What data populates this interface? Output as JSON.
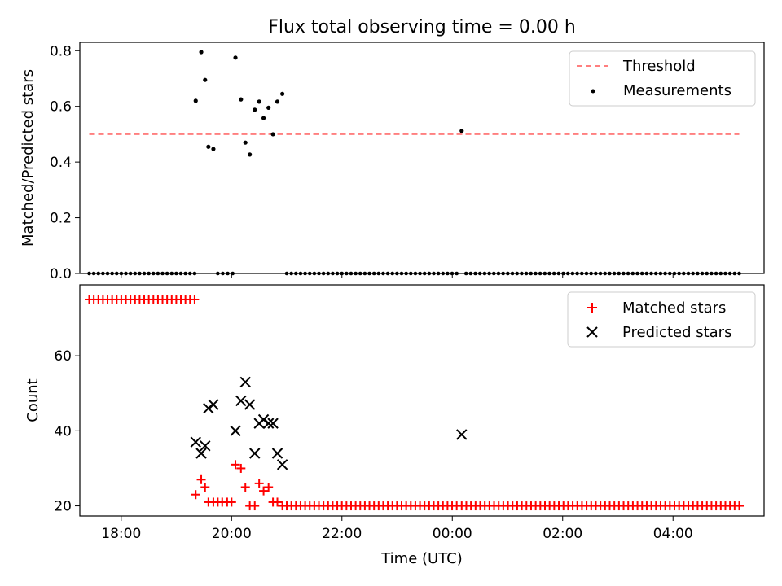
{
  "title": "Flux total observing time = 0.00 h",
  "chart_data": [
    {
      "type": "scatter",
      "ylabel": "Matched/Predicted stars",
      "xlabel": "",
      "xlim": [
        17.25,
        29.65
      ],
      "ylim": [
        0,
        0.83
      ],
      "yticks": [
        0.0,
        0.2,
        0.4,
        0.6,
        0.8
      ],
      "ytick_labels": [
        "0.0",
        "0.2",
        "0.4",
        "0.6",
        "0.8"
      ],
      "threshold": {
        "name": "Threshold",
        "value": 0.5,
        "x_range": [
          17.42,
          29.2
        ],
        "color": "#ff7f7f"
      },
      "legend": {
        "position": "top-right",
        "entries": [
          "Threshold",
          "Measurements"
        ]
      },
      "series": [
        {
          "name": "Measurements",
          "color": "#000000",
          "points": [
            [
              19.35,
              0.62
            ],
            [
              19.45,
              0.795
            ],
            [
              19.52,
              0.695
            ],
            [
              19.58,
              0.455
            ],
            [
              19.67,
              0.447
            ],
            [
              20.07,
              0.775
            ],
            [
              20.17,
              0.625
            ],
            [
              20.25,
              0.47
            ],
            [
              20.33,
              0.427
            ],
            [
              20.42,
              0.588
            ],
            [
              20.5,
              0.617
            ],
            [
              20.58,
              0.558
            ],
            [
              20.67,
              0.595
            ],
            [
              20.75,
              0.5
            ],
            [
              20.83,
              0.617
            ],
            [
              20.92,
              0.645
            ],
            [
              24.17,
              0.512
            ]
          ],
          "zeros_runs": [
            [
              17.42,
              19.33,
              24
            ],
            [
              19.75,
              20.02,
              4
            ],
            [
              21.0,
              24.08,
              38
            ],
            [
              24.25,
              29.2,
              60
            ]
          ]
        }
      ]
    },
    {
      "type": "scatter",
      "ylabel": "Count",
      "xlabel": "Time (UTC)",
      "xlim": [
        17.25,
        29.65
      ],
      "ylim": [
        17.3,
        78.9
      ],
      "yticks": [
        20,
        40,
        60
      ],
      "ytick_labels": [
        "20",
        "40",
        "60"
      ],
      "xticks": [
        18,
        20,
        22,
        24,
        26,
        28
      ],
      "xtick_labels": [
        "18:00",
        "20:00",
        "22:00",
        "00:00",
        "02:00",
        "04:00"
      ],
      "legend": {
        "position": "top-right",
        "entries": [
          "Matched stars",
          "Predicted stars"
        ]
      },
      "series": [
        {
          "name": "Matched stars",
          "color": "#ff0000",
          "marker": "plus",
          "points": [
            [
              19.35,
              23
            ],
            [
              19.45,
              27
            ],
            [
              19.52,
              25
            ],
            [
              19.58,
              21
            ],
            [
              19.67,
              21
            ],
            [
              19.75,
              21
            ],
            [
              19.83,
              21
            ],
            [
              19.92,
              21
            ],
            [
              20.0,
              21
            ],
            [
              20.07,
              31
            ],
            [
              20.17,
              30
            ],
            [
              20.25,
              25
            ],
            [
              20.33,
              20
            ],
            [
              20.42,
              20
            ],
            [
              20.5,
              26
            ],
            [
              20.58,
              24
            ],
            [
              20.67,
              25
            ],
            [
              20.75,
              21
            ],
            [
              20.83,
              21
            ],
            [
              20.92,
              20
            ]
          ],
          "runs": [
            [
              17.42,
              19.33,
              24,
              75
            ],
            [
              21.0,
              24.08,
              38,
              20
            ],
            [
              24.17,
              29.2,
              61,
              20
            ]
          ]
        },
        {
          "name": "Predicted stars",
          "color": "#000000",
          "marker": "x",
          "points": [
            [
              19.35,
              37
            ],
            [
              19.45,
              34
            ],
            [
              19.52,
              36
            ],
            [
              19.58,
              46
            ],
            [
              19.67,
              47
            ],
            [
              20.07,
              40
            ],
            [
              20.17,
              48
            ],
            [
              20.25,
              53
            ],
            [
              20.33,
              47
            ],
            [
              20.42,
              34
            ],
            [
              20.5,
              42
            ],
            [
              20.58,
              43
            ],
            [
              20.67,
              42
            ],
            [
              20.75,
              42
            ],
            [
              20.83,
              34
            ],
            [
              20.92,
              31
            ],
            [
              24.17,
              39
            ]
          ]
        }
      ]
    }
  ]
}
